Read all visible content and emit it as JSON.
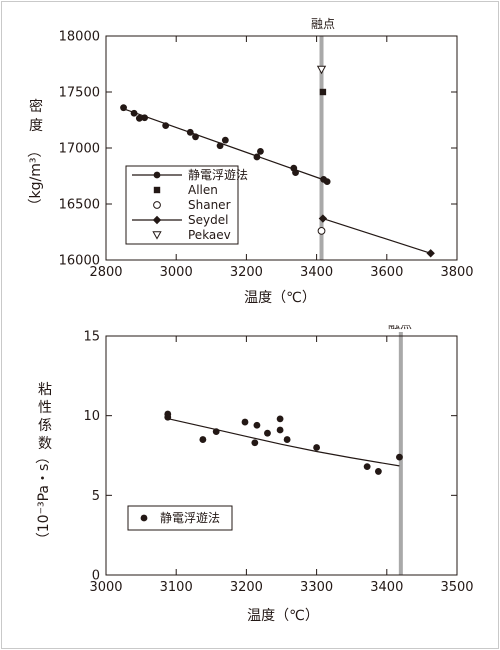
{
  "chart_data": [
    {
      "type": "scatter",
      "xlabel": "温度（℃）",
      "ylabel_chars": [
        "密",
        "度"
      ],
      "ylabel_unit": "（kg/m³）",
      "melting_point_label": "融点",
      "melting_point_x": 3414,
      "xlim": [
        2800,
        3800
      ],
      "ylim": [
        16000,
        18000
      ],
      "x_ticks": [
        2800,
        3000,
        3200,
        3400,
        3600,
        3800
      ],
      "y_ticks": [
        16000,
        16500,
        17000,
        17500,
        18000
      ],
      "x_tick_labels": [
        "2800",
        "3000",
        "3200",
        "3400",
        "3600",
        "3800"
      ],
      "y_tick_labels": [
        "16000",
        "16500",
        "17000",
        "17500",
        "18000"
      ],
      "legend_position": "bottom-left",
      "series": [
        {
          "name": "静電浮遊法",
          "marker": "filled-circle",
          "line": true,
          "points": [
            [
              2850,
              17360
            ],
            [
              2880,
              17310
            ],
            [
              2895,
              17265
            ],
            [
              2910,
              17270
            ],
            [
              2970,
              17200
            ],
            [
              3040,
              17140
            ],
            [
              3055,
              17100
            ],
            [
              3125,
              17020
            ],
            [
              3140,
              17070
            ],
            [
              3230,
              16920
            ],
            [
              3240,
              16970
            ],
            [
              3335,
              16820
            ],
            [
              3340,
              16780
            ],
            [
              3420,
              16720
            ],
            [
              3430,
              16700
            ]
          ],
          "fit": [
            [
              2850,
              17350
            ],
            [
              3430,
              16705
            ]
          ]
        },
        {
          "name": "Allen",
          "marker": "filled-square",
          "points": [
            [
              3418,
              17500
            ]
          ]
        },
        {
          "name": "Shaner",
          "marker": "open-circle",
          "points": [
            [
              3414,
              16260
            ]
          ]
        },
        {
          "name": "Seydel",
          "marker": "filled-diamond",
          "line": true,
          "points": [
            [
              3418,
              16370
            ],
            [
              3725,
              16060
            ]
          ],
          "fit": [
            [
              3418,
              16370
            ],
            [
              3725,
              16060
            ]
          ]
        },
        {
          "name": "Pekaev",
          "marker": "open-triangle-down",
          "points": [
            [
              3414,
              17700
            ]
          ]
        }
      ]
    },
    {
      "type": "scatter",
      "xlabel": "温度（℃）",
      "ylabel_chars": [
        "粘",
        "性",
        "係",
        "数"
      ],
      "ylabel_unit": "（10⁻³Pa・s）",
      "melting_point_label": "融点",
      "melting_point_x": 3420,
      "xlim": [
        3000,
        3500
      ],
      "ylim": [
        0,
        15
      ],
      "x_ticks": [
        3000,
        3100,
        3200,
        3300,
        3400,
        3500
      ],
      "y_ticks": [
        0,
        5,
        10,
        15
      ],
      "x_tick_labels": [
        "3000",
        "3100",
        "3200",
        "3300",
        "3400",
        "3500"
      ],
      "y_tick_labels": [
        "0",
        "5",
        "10",
        "15"
      ],
      "legend_position": "bottom-left",
      "series": [
        {
          "name": "静電浮遊法",
          "marker": "filled-circle",
          "line": false,
          "points": [
            [
              3088,
              10.1
            ],
            [
              3088,
              9.9
            ],
            [
              3138,
              8.5
            ],
            [
              3157,
              9.0
            ],
            [
              3198,
              9.6
            ],
            [
              3212,
              8.3
            ],
            [
              3215,
              9.4
            ],
            [
              3230,
              8.9
            ],
            [
              3248,
              9.1
            ],
            [
              3248,
              9.8
            ],
            [
              3258,
              8.5
            ],
            [
              3300,
              8.0
            ],
            [
              3372,
              6.8
            ],
            [
              3388,
              6.5
            ],
            [
              3418,
              7.4
            ]
          ],
          "fit": [
            [
              3090,
              9.8
            ],
            [
              3150,
              9.2
            ],
            [
              3200,
              8.7
            ],
            [
              3250,
              8.2
            ],
            [
              3300,
              7.75
            ],
            [
              3350,
              7.35
            ],
            [
              3418,
              6.85
            ]
          ]
        }
      ]
    }
  ]
}
